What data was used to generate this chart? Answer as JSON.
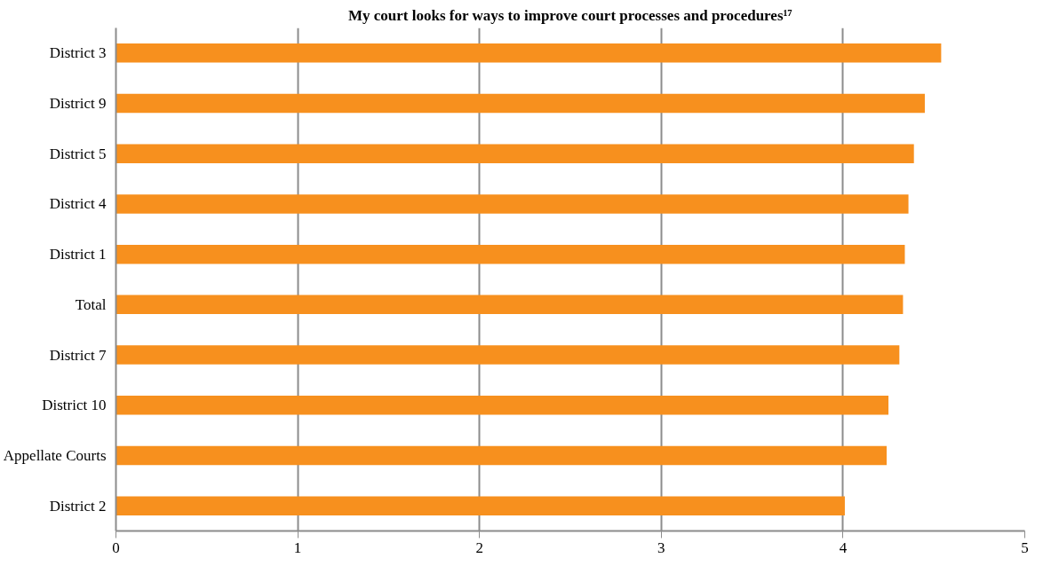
{
  "chart_data": {
    "type": "bar",
    "orientation": "horizontal",
    "title": "My court looks for ways to improve court processes and procedures¹⁷",
    "categories": [
      "District 3",
      "District 9",
      "District 5",
      "District 4",
      "District 1",
      "Total",
      "District 7",
      "District 10",
      "Appellate Courts",
      "District 2"
    ],
    "values": [
      4.54,
      4.45,
      4.39,
      4.36,
      4.34,
      4.33,
      4.31,
      4.25,
      4.24,
      4.01
    ],
    "color": "#f7901e",
    "xlim": [
      0,
      5
    ],
    "xticks": [
      0,
      1,
      2,
      3,
      4,
      5
    ],
    "grid": "x"
  }
}
